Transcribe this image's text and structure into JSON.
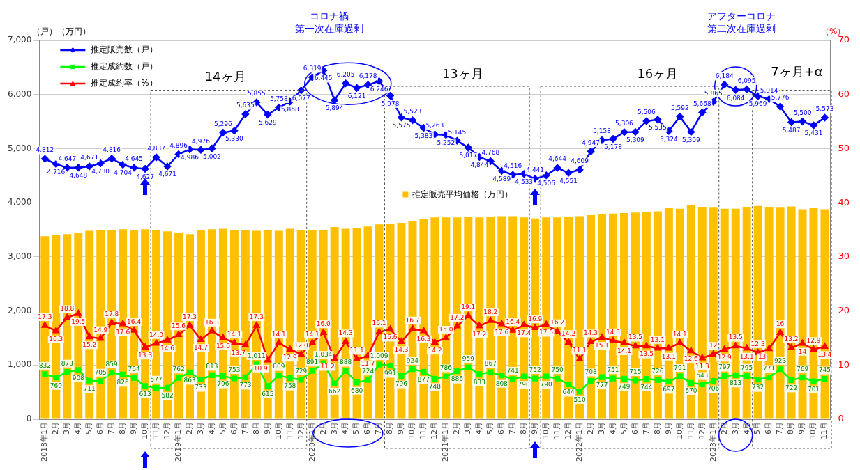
{
  "chart_data": {
    "type": "bar",
    "ylabel": "（戸）（万円）",
    "y2label": "（%）",
    "categories": [
      "2018年1月",
      "2月",
      "3月",
      "4月",
      "5月",
      "6月",
      "7月",
      "8月",
      "9月",
      "10月",
      "11月",
      "12月",
      "2019年1月",
      "2月",
      "3月",
      "4月",
      "5月",
      "6月",
      "7月",
      "8月",
      "9月",
      "10月",
      "11月",
      "12月",
      "2020年1月",
      "2月",
      "3月",
      "4月",
      "5月",
      "6月",
      "7月",
      "8月",
      "9月",
      "10月",
      "11月",
      "12月",
      "2021年1月",
      "2月",
      "3月",
      "4月",
      "5月",
      "6月",
      "7月",
      "8月",
      "9月",
      "10月",
      "11月",
      "12月",
      "2022年1月",
      "2月",
      "3月",
      "4月",
      "5月",
      "6月",
      "7月",
      "8月",
      "9月",
      "10月",
      "11月",
      "12月",
      "2023年1月",
      "2月",
      "3月",
      "4月",
      "5月",
      "6月",
      "7月",
      "8月",
      "9月",
      "10月",
      "11月"
    ],
    "series": [
      {
        "name": "推定販売平均価格（万円）",
        "color": "#ffc000",
        "values": [
          3380,
          3400,
          3420,
          3450,
          3480,
          3500,
          3500,
          3510,
          3490,
          3510,
          3500,
          3470,
          3450,
          3420,
          3490,
          3510,
          3520,
          3500,
          3490,
          3480,
          3500,
          3480,
          3520,
          3500,
          3490,
          3500,
          3550,
          3520,
          3540,
          3560,
          3600,
          3610,
          3630,
          3660,
          3700,
          3730,
          3730,
          3730,
          3740,
          3730,
          3740,
          3750,
          3750,
          3730,
          3710,
          3730,
          3730,
          3740,
          3750,
          3770,
          3790,
          3800,
          3810,
          3820,
          3830,
          3840,
          3900,
          3890,
          3950,
          3920,
          3910,
          3890,
          3890,
          3920,
          3940,
          3920,
          3910,
          3930,
          3880,
          3900,
          3880
        ]
      },
      {
        "name": "推定販売数（戸）",
        "type": "line",
        "color": "#0000ff",
        "marker": "diamond",
        "values": [
          4812,
          4716,
          4647,
          4648,
          4671,
          4730,
          4816,
          4704,
          4645,
          4627,
          4837,
          4671,
          4896,
          4986,
          4976,
          5002,
          5296,
          5330,
          5635,
          5855,
          5629,
          5758,
          5868,
          6077,
          6319,
          6445,
          5894,
          6205,
          6121,
          6178,
          6246,
          5978,
          5575,
          5523,
          5383,
          5263,
          5252,
          5145,
          5017,
          4844,
          4768,
          4589,
          4516,
          4533,
          4441,
          4506,
          4644,
          4551,
          4609,
          4947,
          5158,
          5178,
          5306,
          5309,
          5506,
          5535,
          5324,
          5592,
          5309,
          5668,
          5865,
          6184,
          6084,
          6095,
          5969,
          5914,
          5776,
          5487,
          5500,
          5431,
          5573
        ],
        "value_labels": [
          "4,812",
          "4,716",
          "4,647",
          "4,648",
          "4,671",
          "4,730",
          "4,816",
          "4,704",
          "4,645",
          "4,627",
          "4,837",
          "4,671",
          "4,896",
          "4,986",
          "4,976",
          "5,002",
          "5,296",
          "5,330",
          "5,635",
          "5,855",
          "5,629",
          "5,758",
          "5,868",
          "6,077",
          "6,319",
          "6,445",
          "5,894",
          "6,205",
          "6,121",
          "6,178",
          "6,246",
          "5,978",
          "5,575",
          "5,523",
          "5,383",
          "5,263",
          "5,252",
          "5,145",
          "5,017",
          "4,844",
          "4,768",
          "4,589",
          "4,516",
          "4,533",
          "4,441",
          "4,506",
          "4,644",
          "4,551",
          "4,609",
          "4,947",
          "5,158",
          "5,178",
          "5,306",
          "5,309",
          "5,506",
          "5,535",
          "5,324",
          "5,592",
          "5,309",
          "5,668",
          "5,865",
          "6,184",
          "6,084",
          "6,095",
          "5,969",
          "5,914",
          "5,776",
          "5,487",
          "5,500",
          "5,431",
          "5,573"
        ]
      },
      {
        "name": "推定成約数（戸）",
        "type": "line",
        "color": "#00ff00",
        "marker": "square",
        "values": [
          832,
          769,
          873,
          908,
          711,
          705,
          859,
          826,
          764,
          613,
          577,
          582,
          762,
          863,
          733,
          813,
          796,
          753,
          773,
          1011,
          615,
          809,
          758,
          729,
          891,
          1034,
          662,
          888,
          680,
          724,
          1009,
          991,
          796,
          924,
          877,
          748,
          786,
          886,
          959,
          833,
          867,
          808,
          741,
          790,
          752,
          790,
          750,
          644,
          510,
          708,
          777,
          751,
          749,
          715,
          744,
          726,
          697,
          791,
          670,
          643,
          706,
          797,
          813,
          795,
          732,
          771,
          923,
          722,
          769,
          701,
          745
        ],
        "value_labels": [
          "832",
          "769",
          "873",
          "908",
          "711",
          "705",
          "859",
          "826",
          "764",
          "613",
          "577",
          "582",
          "762",
          "863",
          "733",
          "813",
          "796",
          "753",
          "773",
          "1,011",
          "615",
          "809",
          "758",
          "729",
          "891",
          "1,034",
          "662",
          "888",
          "680",
          "724",
          "1,009",
          "991",
          "796",
          "924",
          "877",
          "748",
          "786",
          "886",
          "959",
          "833",
          "867",
          "808",
          "741",
          "790",
          "752",
          "790",
          "750",
          "644",
          "510",
          "708",
          "777",
          "751",
          "749",
          "715",
          "744",
          "726",
          "697",
          "791",
          "670",
          "643",
          "706",
          "797",
          "813",
          "795",
          "732",
          "771",
          "923",
          "722",
          "769",
          "701",
          "745"
        ]
      },
      {
        "name": "推定成約率（%）",
        "type": "line",
        "axis": "y2",
        "color": "#ff0000",
        "marker": "triangle",
        "values": [
          17.3,
          16.3,
          18.8,
          19.5,
          15.2,
          14.9,
          17.8,
          17.6,
          16.4,
          13.3,
          14.0,
          14.6,
          15.6,
          17.3,
          14.7,
          16.3,
          15.0,
          14.1,
          13.7,
          17.3,
          10.9,
          14.1,
          12.9,
          12.0,
          14.1,
          16.0,
          11.2,
          14.3,
          11.1,
          11.7,
          16.1,
          16.6,
          14.3,
          16.7,
          16.3,
          14.2,
          15.0,
          17.2,
          19.1,
          17.2,
          18.2,
          17.6,
          16.4,
          17.4,
          16.9,
          17.5,
          16.2,
          14.2,
          11.1,
          14.3,
          15.1,
          14.5,
          14.1,
          13.5,
          13.5,
          13.1,
          13.1,
          14.1,
          12.6,
          11.3,
          12,
          12.9,
          13.5,
          13.1,
          12.3,
          13,
          16,
          13.2,
          14,
          12.9,
          13.4
        ],
        "value_labels": [
          "17.3",
          "16.3",
          "18.8",
          "19.5",
          "15.2",
          "14.9",
          "17.8",
          "17.6",
          "16.4",
          "13.3",
          "14.0",
          "14.6",
          "15.6",
          "17.3",
          "14.7",
          "16.3",
          "15.0",
          "14.1",
          "13.7",
          "17.3",
          "10.9",
          "14.1",
          "12.9",
          "12.0",
          "14.1",
          "16.0",
          "11.2",
          "14.3",
          "11.1",
          "11.7",
          "16.1",
          "16.6",
          "14.3",
          "16.7",
          "16.3",
          "14.2",
          "15.0",
          "17.2",
          "19.1",
          "17.2",
          "18.2",
          "17.6",
          "16.4",
          "17.4",
          "16.9",
          "17.5",
          "16.2",
          "14.2",
          "11.1",
          "14.3",
          "15.1",
          "14.5",
          "14.1",
          "13.5",
          "13.5",
          "13.1",
          "13.1",
          "14.1",
          "12.6",
          "11.3",
          "12",
          "12.9",
          "13.5",
          "13.1",
          "12.3",
          "13",
          "16",
          "13.2",
          "14",
          "12.9",
          "13.4"
        ]
      }
    ],
    "ylim": [
      0,
      7000
    ],
    "yticks": [
      0,
      {
        "value": 1000,
        "label": "1,000"
      },
      {
        "value": 2000,
        "label": "2,000"
      },
      {
        "value": 3000,
        "label": "3,000"
      },
      {
        "value": 4000,
        "label": "4,000"
      },
      {
        "value": 5000,
        "label": "5,000"
      },
      {
        "value": 6000,
        "label": "6,000"
      },
      {
        "value": 7000,
        "label": "7,000"
      }
    ],
    "y2lim": [
      0,
      70
    ],
    "y2ticks": [
      0,
      10,
      20,
      30,
      40,
      50,
      60,
      70
    ],
    "grid": "y",
    "legend": "top left",
    "annotations": [
      "14ヶ月",
      "13ヶ月",
      "16ヶ月",
      "7ヶ月+α",
      "コロナ禍",
      "第一次在庫過剰",
      "アフターコロナ",
      "第二次在庫過剰"
    ]
  }
}
